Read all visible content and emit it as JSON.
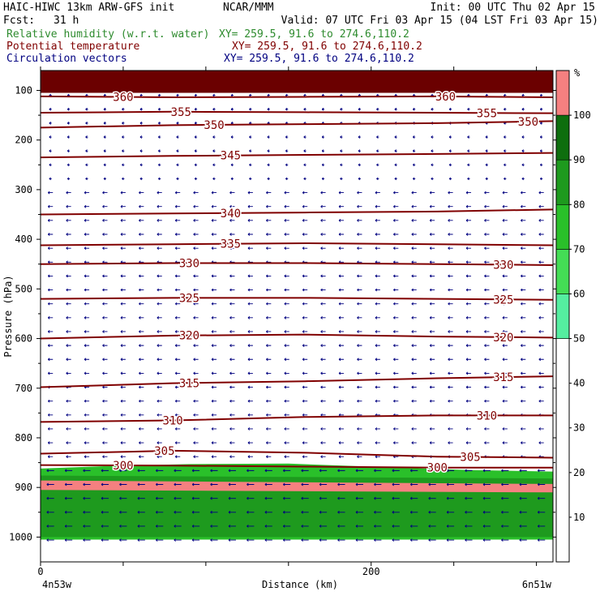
{
  "header": {
    "model": "HAIC-HIWC 13km ARW-GFS init",
    "org": "NCAR/MMM",
    "init": "Init: 00 UTC Thu 02 Apr 15",
    "fcst_label": "Fcst:",
    "fcst_value": "31 h",
    "valid": "Valid: 07 UTC Fri 03 Apr 15 (04 LST Fri 03 Apr 15)",
    "fields": [
      {
        "name": "Relative humidity (w.r.t. water)",
        "xy": "XY= 259.5, 91.6 to 274.6,110.2",
        "color": "#2e8b2e"
      },
      {
        "name": "Potential temperature",
        "xy": "XY= 259.5, 91.6 to 274.6,110.2",
        "color": "#800000"
      },
      {
        "name": "Circulation vectors",
        "xy": "XY= 259.5, 91.6 to 274.6,110.2",
        "color": "#000080"
      }
    ]
  },
  "chart_data": {
    "type": "contour-cross-section",
    "xlabel": "Distance (km)",
    "ylabel": "Pressure (hPa)",
    "x_range": [
      0,
      310
    ],
    "y_range": [
      60,
      1050
    ],
    "x_ticks": [
      0,
      200
    ],
    "x_minor_step": 50,
    "y_ticks": [
      100,
      200,
      300,
      400,
      500,
      600,
      700,
      800,
      900,
      1000
    ],
    "y_minor_step": 50,
    "endpoint_labels": {
      "left": "4n53w",
      "right": "6n51w"
    },
    "colorbar": {
      "unit": "%",
      "labels": [
        10,
        20,
        30,
        40,
        50,
        60,
        70,
        80,
        90,
        100
      ],
      "bands": [
        {
          "from": 0,
          "to": 50,
          "color": "#ffffff"
        },
        {
          "from": 50,
          "to": 60,
          "color": "#55eea0"
        },
        {
          "from": 60,
          "to": 70,
          "color": "#44dd55"
        },
        {
          "from": 70,
          "to": 80,
          "color": "#2ac02a"
        },
        {
          "from": 80,
          "to": 90,
          "color": "#1e9a1e"
        },
        {
          "from": 90,
          "to": 100,
          "color": "#0e6e0e"
        },
        {
          "from": 100,
          "to": 110,
          "color": "#f58080"
        }
      ]
    },
    "rh_fields": [
      {
        "top": [
          [
            0,
            60
          ],
          [
            310,
            60
          ]
        ],
        "bottom": [
          [
            0,
            105
          ],
          [
            310,
            105
          ]
        ],
        "color": "#6b0000"
      },
      {
        "top": [
          [
            0,
            862
          ],
          [
            40,
            857
          ],
          [
            90,
            853
          ],
          [
            150,
            852
          ],
          [
            200,
            858
          ],
          [
            260,
            865
          ],
          [
            310,
            868
          ]
        ],
        "bottom": [
          [
            0,
            1005
          ],
          [
            310,
            1005
          ]
        ],
        "color": "#2ac02a"
      },
      {
        "top": [
          [
            0,
            876
          ],
          [
            310,
            882
          ]
        ],
        "bottom": [
          [
            0,
            1000
          ],
          [
            310,
            1000
          ]
        ],
        "color": "#1e9a1e"
      },
      {
        "top": [
          [
            0,
            886
          ],
          [
            310,
            893
          ]
        ],
        "bottom": [
          [
            0,
            905
          ],
          [
            310,
            910
          ]
        ],
        "color": "#f58080"
      }
    ],
    "theta_contours": [
      {
        "value": 360,
        "points": [
          [
            0,
            112
          ],
          [
            80,
            114
          ],
          [
            160,
            113
          ],
          [
            240,
            112
          ],
          [
            310,
            114
          ]
        ],
        "labels": [
          50,
          245
        ]
      },
      {
        "value": 355,
        "points": [
          [
            0,
            145
          ],
          [
            80,
            143
          ],
          [
            160,
            144
          ],
          [
            240,
            145
          ],
          [
            310,
            146
          ]
        ],
        "labels": [
          85,
          270
        ]
      },
      {
        "value": 350,
        "points": [
          [
            0,
            175
          ],
          [
            80,
            170
          ],
          [
            160,
            168
          ],
          [
            240,
            166
          ],
          [
            310,
            162
          ]
        ],
        "labels": [
          105,
          295
        ]
      },
      {
        "value": 345,
        "points": [
          [
            0,
            235
          ],
          [
            80,
            232
          ],
          [
            160,
            230
          ],
          [
            240,
            228
          ],
          [
            310,
            226
          ]
        ],
        "labels": [
          115
        ]
      },
      {
        "value": 340,
        "points": [
          [
            0,
            350
          ],
          [
            80,
            348
          ],
          [
            160,
            346
          ],
          [
            240,
            344
          ],
          [
            310,
            340
          ]
        ],
        "labels": [
          115
        ]
      },
      {
        "value": 335,
        "points": [
          [
            0,
            412
          ],
          [
            80,
            410
          ],
          [
            160,
            408
          ],
          [
            240,
            410
          ],
          [
            310,
            412
          ]
        ],
        "labels": [
          115
        ]
      },
      {
        "value": 330,
        "points": [
          [
            0,
            450
          ],
          [
            80,
            448
          ],
          [
            160,
            448
          ],
          [
            240,
            450
          ],
          [
            310,
            452
          ]
        ],
        "labels": [
          90,
          280
        ]
      },
      {
        "value": 325,
        "points": [
          [
            0,
            520
          ],
          [
            80,
            518
          ],
          [
            160,
            518
          ],
          [
            240,
            520
          ],
          [
            310,
            522
          ]
        ],
        "labels": [
          90,
          280
        ]
      },
      {
        "value": 320,
        "points": [
          [
            0,
            600
          ],
          [
            80,
            594
          ],
          [
            160,
            592
          ],
          [
            240,
            596
          ],
          [
            310,
            598
          ]
        ],
        "labels": [
          90,
          280
        ]
      },
      {
        "value": 315,
        "points": [
          [
            0,
            698
          ],
          [
            80,
            690
          ],
          [
            160,
            686
          ],
          [
            240,
            680
          ],
          [
            310,
            676
          ]
        ],
        "labels": [
          90,
          280
        ]
      },
      {
        "value": 310,
        "points": [
          [
            0,
            768
          ],
          [
            80,
            765
          ],
          [
            160,
            758
          ],
          [
            240,
            755
          ],
          [
            310,
            755
          ]
        ],
        "labels": [
          80,
          270
        ]
      },
      {
        "value": 305,
        "points": [
          [
            0,
            832
          ],
          [
            80,
            826
          ],
          [
            160,
            830
          ],
          [
            240,
            838
          ],
          [
            310,
            840
          ]
        ],
        "labels": [
          75,
          260
        ]
      },
      {
        "value": 300,
        "points": [
          [
            0,
            855
          ],
          [
            80,
            856
          ],
          [
            160,
            858
          ],
          [
            240,
            860
          ],
          [
            310,
            860
          ]
        ],
        "labels": [
          50,
          240
        ]
      }
    ]
  }
}
